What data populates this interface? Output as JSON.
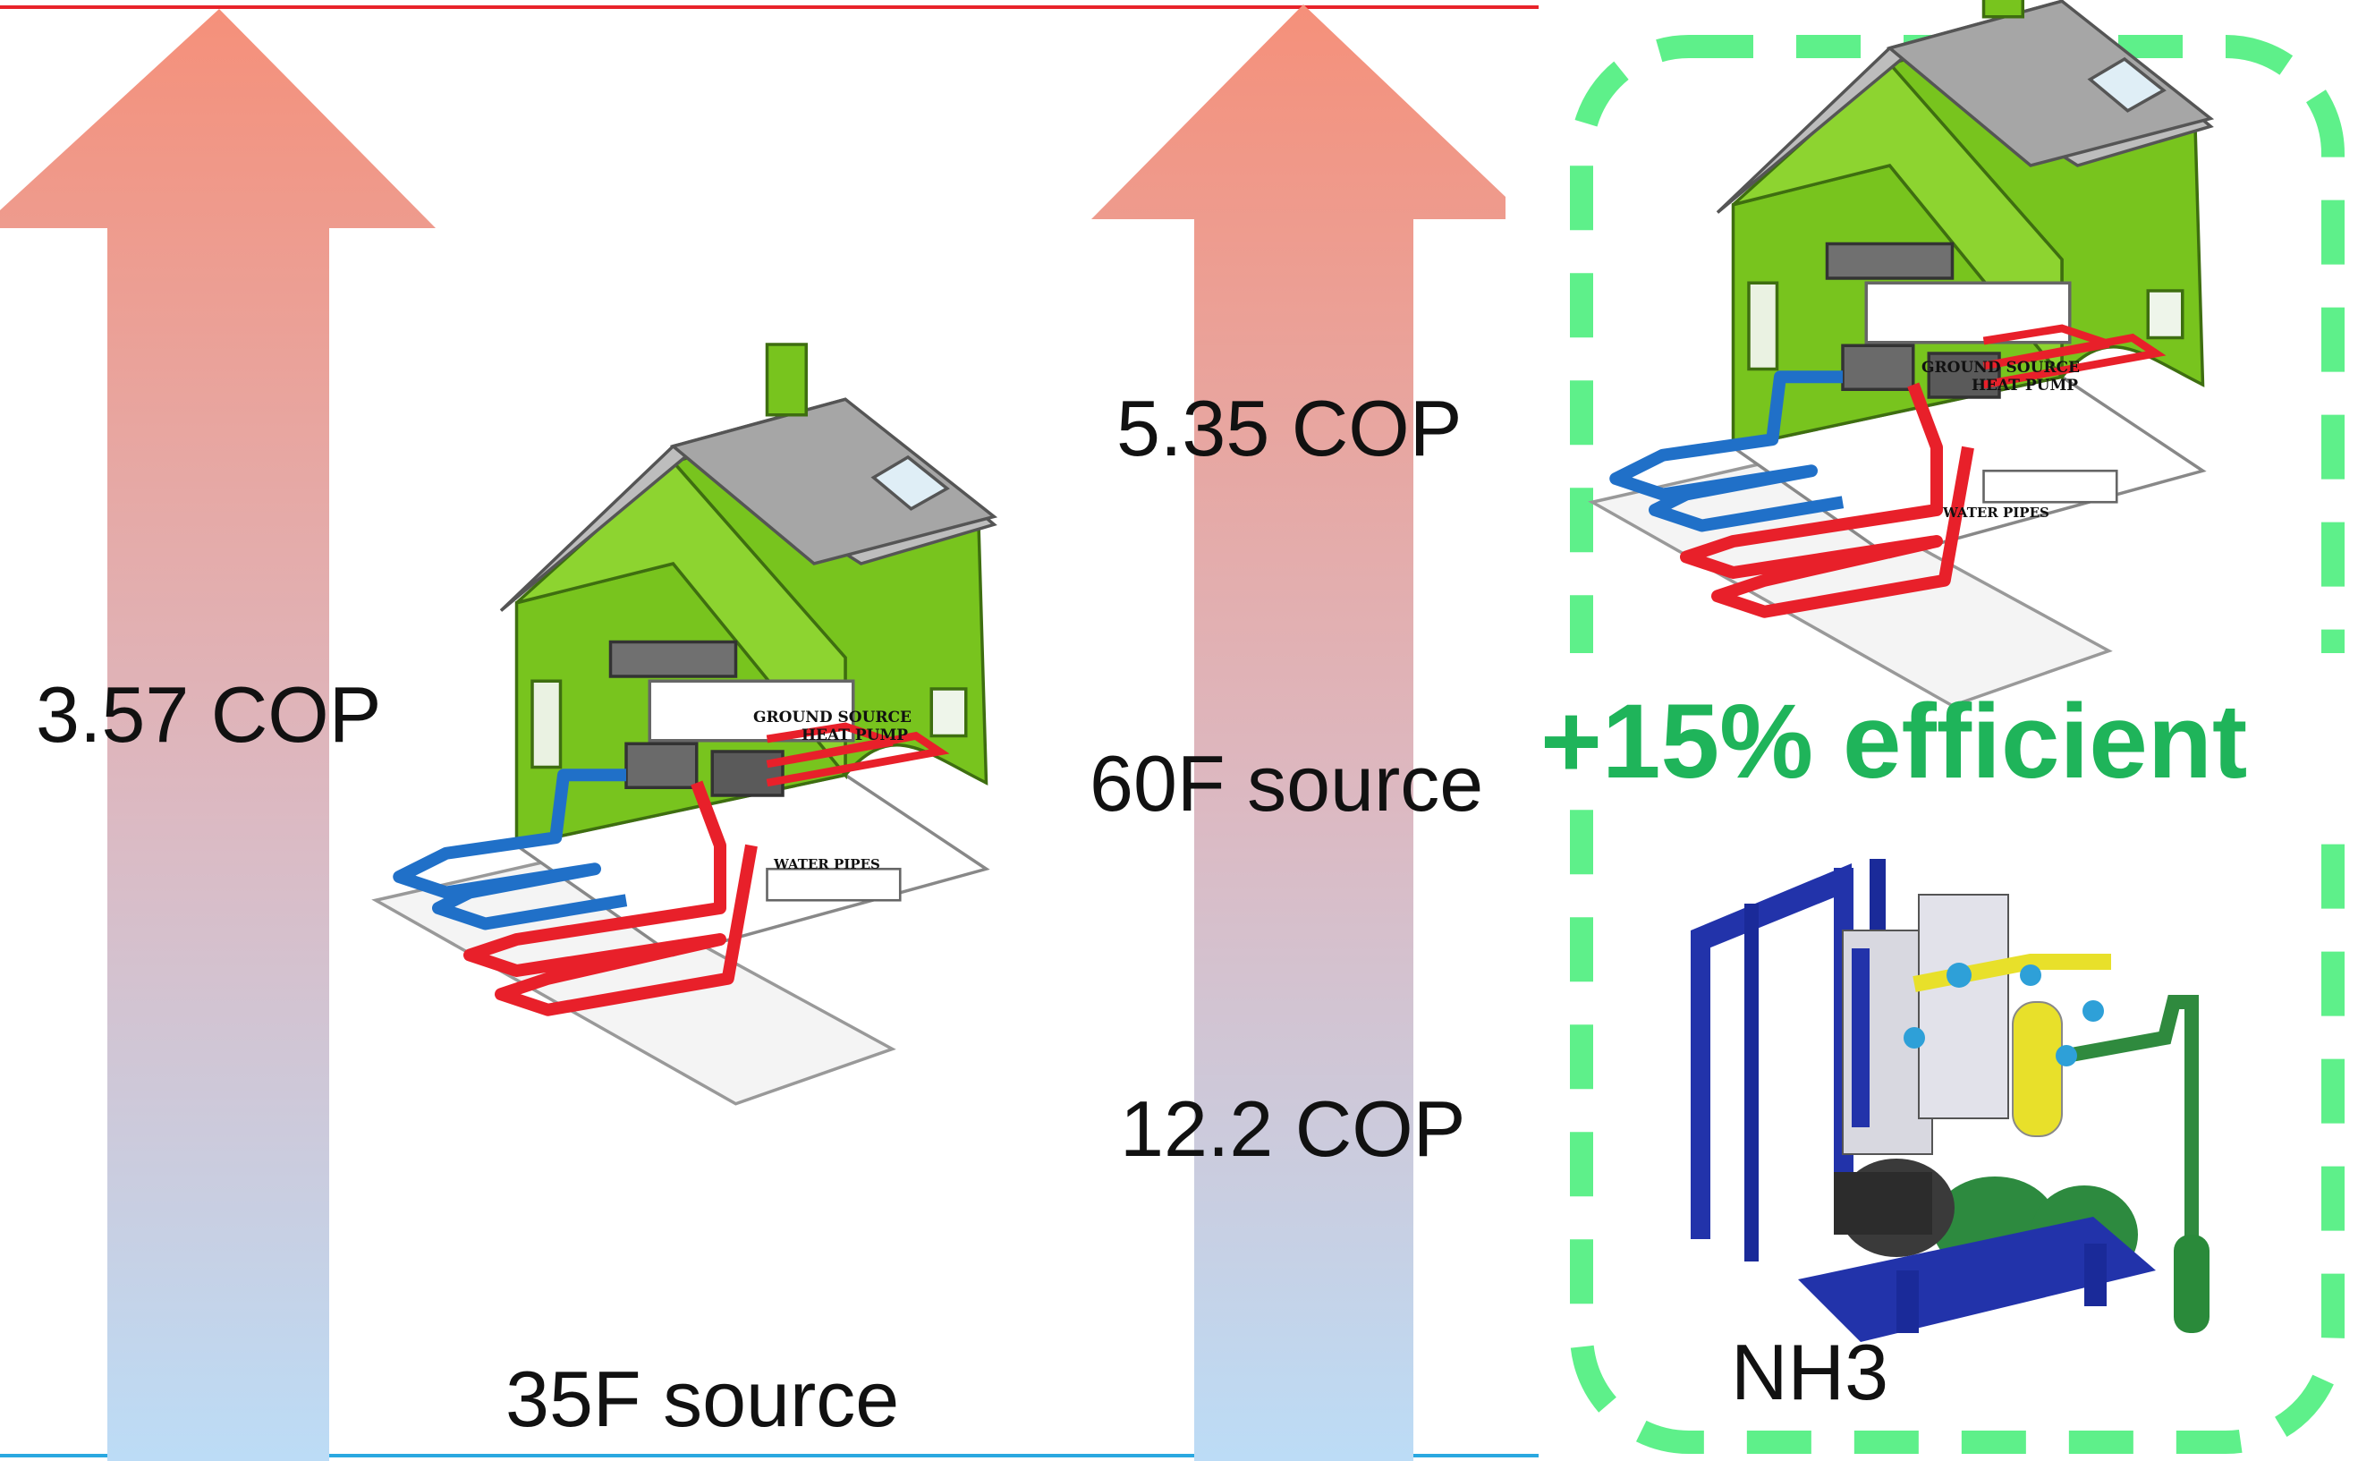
{
  "labels": {
    "left_cop": "3.57 COP",
    "right_top_cop": "5.35 COP",
    "source_60": "60F source",
    "right_bottom_cop": "12.2 COP",
    "source_35": "35F source",
    "efficiency": "+15% efficient",
    "nh3": "NH3"
  },
  "house_labels": {
    "ground_source": "GROUND SOURCE",
    "heat_pump": "HEAT PUMP",
    "water_pipes": "WATER PIPES"
  },
  "colors": {
    "arrow_top": "#f5907a",
    "arrow_bottom": "#bcdcf6",
    "top_line": "#e8232a",
    "bottom_line": "#2aa8e0",
    "dashed_box": "#5ef08a",
    "efficiency_text": "#1fb45a",
    "house_green": "#78c41e",
    "pipe_red": "#e8202a",
    "pipe_blue": "#2070c8"
  }
}
